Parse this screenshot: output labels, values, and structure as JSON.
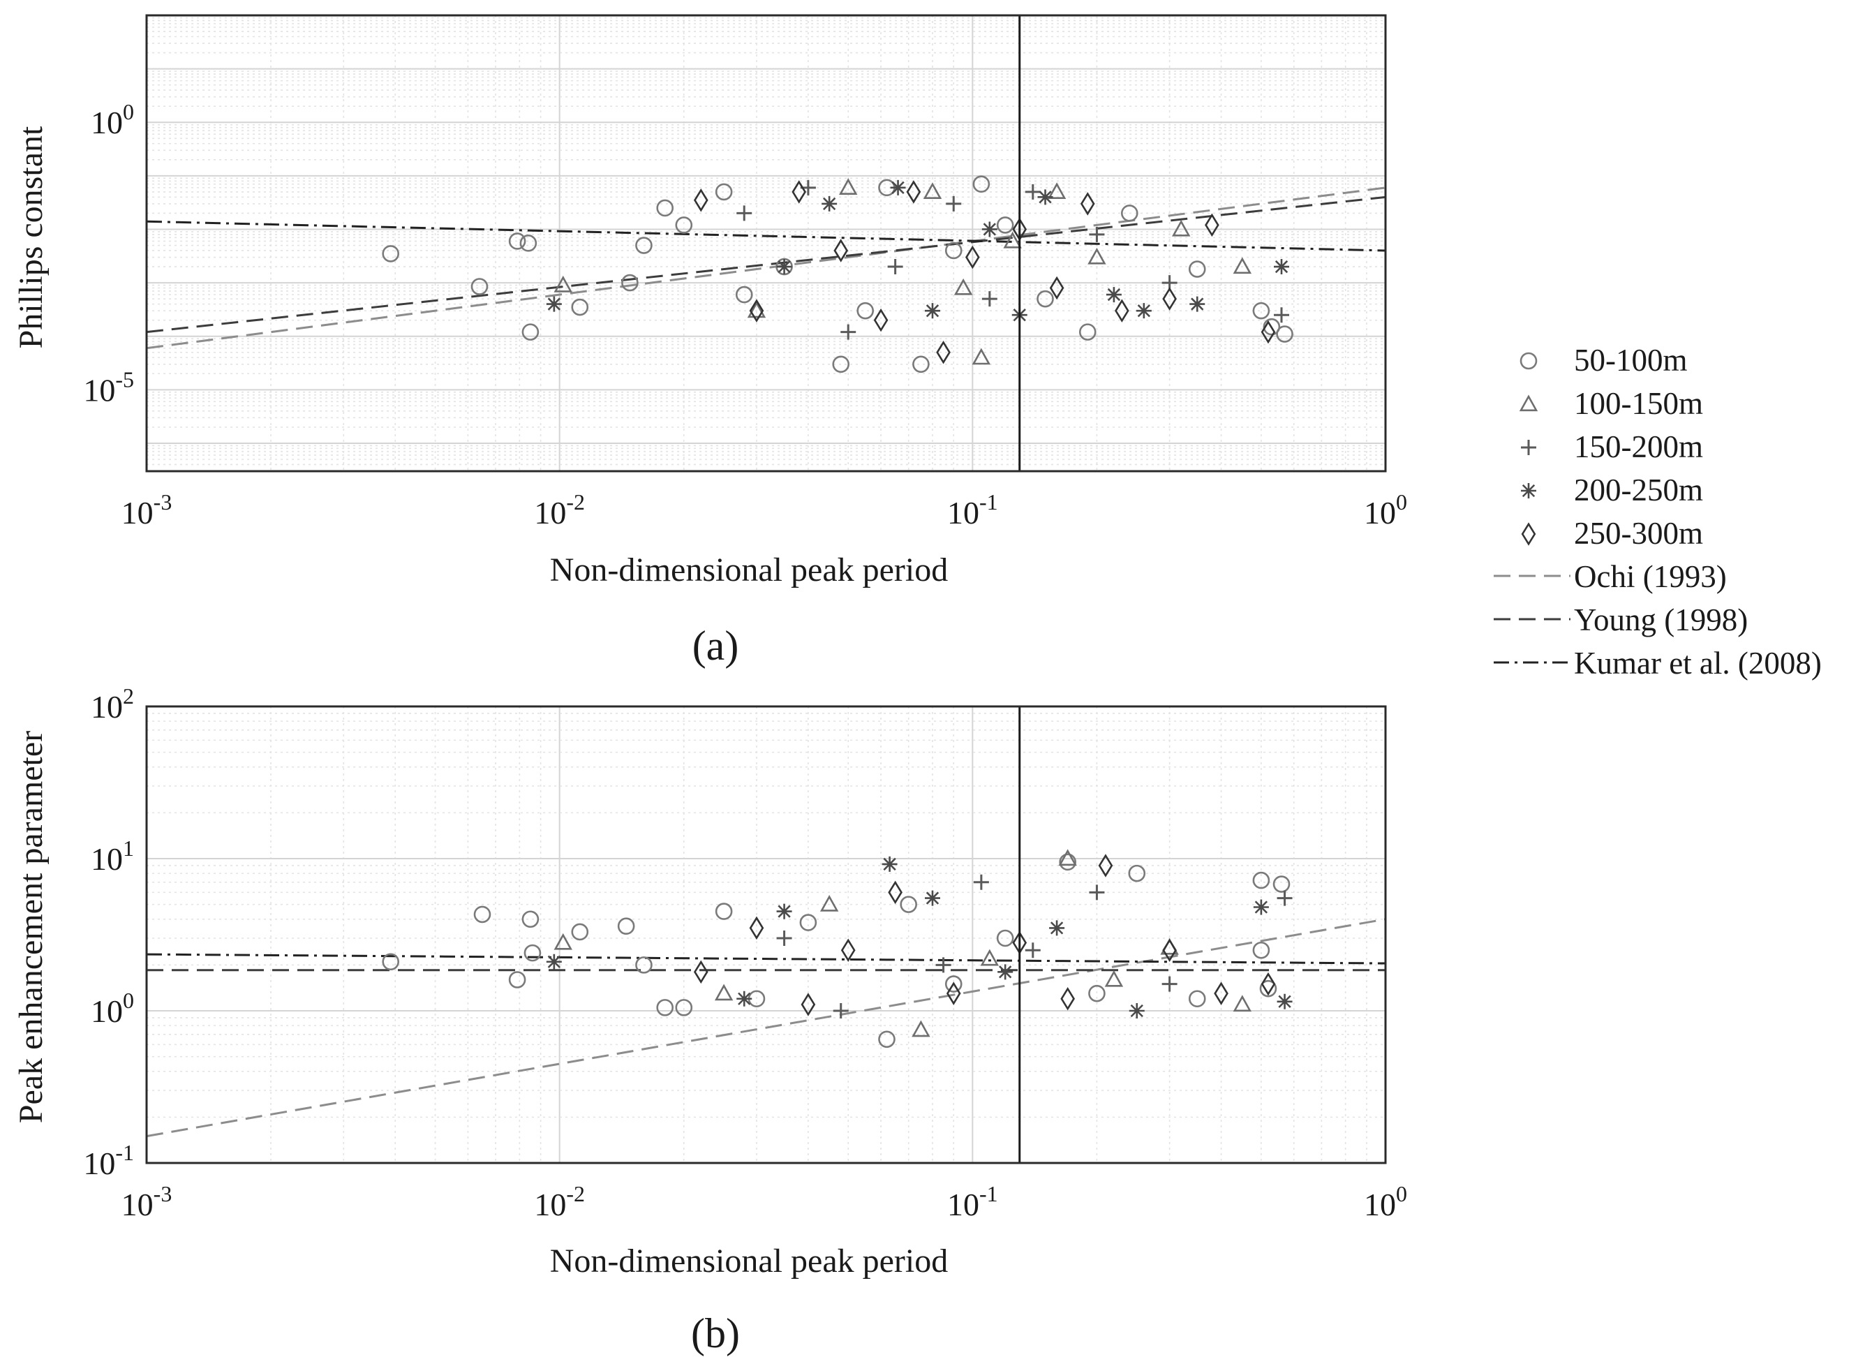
{
  "legend": {
    "entries": [
      {
        "label": "50-100m",
        "marker": "circle",
        "color": "#7a7a7a"
      },
      {
        "label": "100-150m",
        "marker": "triangle",
        "color": "#6e6e6e"
      },
      {
        "label": "150-200m",
        "marker": "plus",
        "color": "#5a5a5a"
      },
      {
        "label": "200-250m",
        "marker": "asterisk",
        "color": "#4a4a4a"
      },
      {
        "label": "250-300m",
        "marker": "diamond",
        "color": "#333333"
      },
      {
        "label": "Ochi (1993)",
        "line": "dashed",
        "color": "#8c8c8c"
      },
      {
        "label": "Young (1998)",
        "line": "dashed",
        "color": "#3c3c3c"
      },
      {
        "label": "Kumar et al. (2008)",
        "line": "dashdot",
        "color": "#222222"
      }
    ]
  },
  "chart_data": [
    {
      "type": "scatter",
      "panel": "(a)",
      "xlabel": "Non-dimensional peak period",
      "ylabel": "Phillips constant",
      "xscale": "log",
      "yscale": "log",
      "xlim": [
        0.001,
        1
      ],
      "ylim": [
        3e-07,
        100
      ],
      "x_ticks": [
        {
          "base": "10",
          "exp": "-3",
          "value": 0.001
        },
        {
          "base": "10",
          "exp": "-2",
          "value": 0.01
        },
        {
          "base": "10",
          "exp": "-1",
          "value": 0.1
        },
        {
          "base": "10",
          "exp": "0",
          "value": 1
        }
      ],
      "y_ticks": [
        {
          "base": "10",
          "exp": "-5",
          "value": 1e-05
        },
        {
          "base": "10",
          "exp": "0",
          "value": 1
        }
      ],
      "grid": true,
      "vertical_line_x": 0.13,
      "fit_lines": [
        {
          "name": "Ochi (1993)",
          "points": [
            [
              0.001,
              6e-05
            ],
            [
              1,
              0.06
            ]
          ]
        },
        {
          "name": "Young (1998)",
          "points": [
            [
              0.001,
              0.00012
            ],
            [
              1,
              0.04
            ]
          ]
        },
        {
          "name": "Kumar et al. (2008)",
          "points": [
            [
              0.001,
              0.014
            ],
            [
              1,
              0.004
            ]
          ]
        }
      ],
      "series": [
        {
          "name": "50-100m",
          "points": [
            [
              0.0039,
              0.0035
            ],
            [
              0.0064,
              0.00085
            ],
            [
              0.0079,
              0.006
            ],
            [
              0.0084,
              0.0055
            ],
            [
              0.0085,
              0.00012
            ],
            [
              0.0112,
              0.00035
            ],
            [
              0.0148,
              0.001
            ],
            [
              0.016,
              0.005
            ],
            [
              0.018,
              0.025
            ],
            [
              0.02,
              0.012
            ],
            [
              0.025,
              0.05
            ],
            [
              0.028,
              0.0006
            ],
            [
              0.035,
              0.002
            ],
            [
              0.048,
              3e-05
            ],
            [
              0.055,
              0.0003
            ],
            [
              0.062,
              0.06
            ],
            [
              0.075,
              3e-05
            ],
            [
              0.09,
              0.004
            ],
            [
              0.105,
              0.07
            ],
            [
              0.12,
              0.012
            ],
            [
              0.15,
              0.0005
            ],
            [
              0.19,
              0.00012
            ],
            [
              0.24,
              0.02
            ],
            [
              0.35,
              0.0018
            ],
            [
              0.5,
              0.0003
            ],
            [
              0.53,
              0.00015
            ],
            [
              0.57,
              0.00011
            ]
          ]
        },
        {
          "name": "100-150m",
          "points": [
            [
              0.0102,
              0.0009
            ],
            [
              0.03,
              0.0003
            ],
            [
              0.05,
              0.06
            ],
            [
              0.08,
              0.05
            ],
            [
              0.095,
              0.0008
            ],
            [
              0.105,
              4e-05
            ],
            [
              0.125,
              0.006
            ],
            [
              0.16,
              0.05
            ],
            [
              0.2,
              0.003
            ],
            [
              0.32,
              0.01
            ],
            [
              0.45,
              0.002
            ]
          ]
        },
        {
          "name": "150-200m",
          "points": [
            [
              0.028,
              0.02
            ],
            [
              0.04,
              0.06
            ],
            [
              0.05,
              0.00012
            ],
            [
              0.065,
              0.002
            ],
            [
              0.09,
              0.03
            ],
            [
              0.11,
              0.0005
            ],
            [
              0.14,
              0.05
            ],
            [
              0.2,
              0.008
            ],
            [
              0.3,
              0.001
            ],
            [
              0.56,
              0.00025
            ]
          ]
        },
        {
          "name": "200-250m",
          "points": [
            [
              0.0097,
              0.0004
            ],
            [
              0.035,
              0.002
            ],
            [
              0.045,
              0.03
            ],
            [
              0.066,
              0.06
            ],
            [
              0.08,
              0.0003
            ],
            [
              0.11,
              0.01
            ],
            [
              0.13,
              0.00025
            ],
            [
              0.15,
              0.04
            ],
            [
              0.22,
              0.0006
            ],
            [
              0.26,
              0.0003
            ],
            [
              0.35,
              0.0004
            ],
            [
              0.56,
              0.002
            ]
          ]
        },
        {
          "name": "250-300m",
          "points": [
            [
              0.022,
              0.035
            ],
            [
              0.03,
              0.0003
            ],
            [
              0.038,
              0.05
            ],
            [
              0.048,
              0.004
            ],
            [
              0.06,
              0.0002
            ],
            [
              0.072,
              0.05
            ],
            [
              0.085,
              5e-05
            ],
            [
              0.1,
              0.003
            ],
            [
              0.13,
              0.01
            ],
            [
              0.16,
              0.0008
            ],
            [
              0.19,
              0.03
            ],
            [
              0.23,
              0.0003
            ],
            [
              0.3,
              0.0005
            ],
            [
              0.38,
              0.012
            ],
            [
              0.52,
              0.00012
            ]
          ]
        }
      ]
    },
    {
      "type": "scatter",
      "panel": "(b)",
      "xlabel": "Non-dimensional peak period",
      "ylabel": "Peak enhancement parameter",
      "xscale": "log",
      "yscale": "log",
      "xlim": [
        0.001,
        1
      ],
      "ylim": [
        0.1,
        100
      ],
      "x_ticks": [
        {
          "base": "10",
          "exp": "-3",
          "value": 0.001
        },
        {
          "base": "10",
          "exp": "-2",
          "value": 0.01
        },
        {
          "base": "10",
          "exp": "-1",
          "value": 0.1
        },
        {
          "base": "10",
          "exp": "0",
          "value": 1
        }
      ],
      "y_ticks": [
        {
          "base": "10",
          "exp": "-1",
          "value": 0.1
        },
        {
          "base": "10",
          "exp": "0",
          "value": 1
        },
        {
          "base": "10",
          "exp": "1",
          "value": 10
        },
        {
          "base": "10",
          "exp": "2",
          "value": 100
        }
      ],
      "grid": true,
      "vertical_line_x": 0.13,
      "fit_lines": [
        {
          "name": "Ochi (1993)",
          "points": [
            [
              0.001,
              0.15
            ],
            [
              1,
              4.0
            ]
          ]
        },
        {
          "name": "Young (1998)",
          "points": [
            [
              0.001,
              1.85
            ],
            [
              1,
              1.85
            ]
          ]
        },
        {
          "name": "Kumar et al. (2008)",
          "points": [
            [
              0.001,
              2.35
            ],
            [
              1,
              2.05
            ]
          ]
        }
      ],
      "series": [
        {
          "name": "50-100m",
          "points": [
            [
              0.0039,
              2.1
            ],
            [
              0.0065,
              4.3
            ],
            [
              0.0079,
              1.6
            ],
            [
              0.0085,
              4.0
            ],
            [
              0.0086,
              2.4
            ],
            [
              0.0112,
              3.3
            ],
            [
              0.0145,
              3.6
            ],
            [
              0.016,
              2.0
            ],
            [
              0.018,
              1.05
            ],
            [
              0.02,
              1.05
            ],
            [
              0.025,
              4.5
            ],
            [
              0.03,
              1.2
            ],
            [
              0.04,
              3.8
            ],
            [
              0.062,
              0.65
            ],
            [
              0.07,
              5.0
            ],
            [
              0.09,
              1.5
            ],
            [
              0.12,
              3.0
            ],
            [
              0.17,
              9.5
            ],
            [
              0.2,
              1.3
            ],
            [
              0.25,
              8.0
            ],
            [
              0.35,
              1.2
            ],
            [
              0.5,
              7.2
            ],
            [
              0.5,
              2.5
            ],
            [
              0.56,
              6.8
            ],
            [
              0.52,
              1.4
            ]
          ]
        },
        {
          "name": "100-150m",
          "points": [
            [
              0.0102,
              2.8
            ],
            [
              0.025,
              1.3
            ],
            [
              0.045,
              5.0
            ],
            [
              0.075,
              0.75
            ],
            [
              0.11,
              2.2
            ],
            [
              0.17,
              10.0
            ],
            [
              0.22,
              1.6
            ],
            [
              0.3,
              2.6
            ],
            [
              0.45,
              1.1
            ]
          ]
        },
        {
          "name": "150-200m",
          "points": [
            [
              0.035,
              3.0
            ],
            [
              0.048,
              1.0
            ],
            [
              0.085,
              2.0
            ],
            [
              0.105,
              7.0
            ],
            [
              0.14,
              2.5
            ],
            [
              0.2,
              6.0
            ],
            [
              0.3,
              1.5
            ],
            [
              0.57,
              5.5
            ]
          ]
        },
        {
          "name": "200-250m",
          "points": [
            [
              0.0097,
              2.1
            ],
            [
              0.028,
              1.2
            ],
            [
              0.035,
              4.5
            ],
            [
              0.063,
              9.2
            ],
            [
              0.08,
              5.5
            ],
            [
              0.12,
              1.8
            ],
            [
              0.16,
              3.5
            ],
            [
              0.25,
              1.0
            ],
            [
              0.5,
              4.8
            ],
            [
              0.57,
              1.15
            ]
          ]
        },
        {
          "name": "250-300m",
          "points": [
            [
              0.022,
              1.8
            ],
            [
              0.03,
              3.5
            ],
            [
              0.04,
              1.1
            ],
            [
              0.05,
              2.5
            ],
            [
              0.065,
              6.0
            ],
            [
              0.09,
              1.3
            ],
            [
              0.13,
              2.8
            ],
            [
              0.17,
              1.2
            ],
            [
              0.21,
              9.0
            ],
            [
              0.3,
              2.5
            ],
            [
              0.4,
              1.3
            ],
            [
              0.52,
              1.5
            ]
          ]
        }
      ]
    }
  ]
}
